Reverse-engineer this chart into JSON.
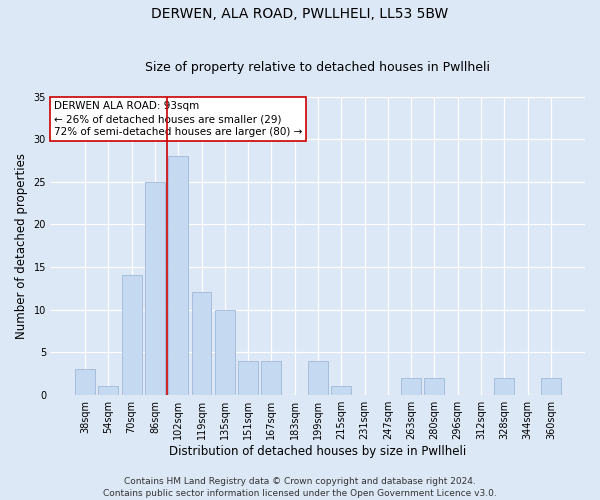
{
  "title": "DERWEN, ALA ROAD, PWLLHELI, LL53 5BW",
  "subtitle": "Size of property relative to detached houses in Pwllheli",
  "xlabel": "Distribution of detached houses by size in Pwllheli",
  "ylabel": "Number of detached properties",
  "categories": [
    "38sqm",
    "54sqm",
    "70sqm",
    "86sqm",
    "102sqm",
    "119sqm",
    "135sqm",
    "151sqm",
    "167sqm",
    "183sqm",
    "199sqm",
    "215sqm",
    "231sqm",
    "247sqm",
    "263sqm",
    "280sqm",
    "296sqm",
    "312sqm",
    "328sqm",
    "344sqm",
    "360sqm"
  ],
  "values": [
    3,
    1,
    14,
    25,
    28,
    12,
    10,
    4,
    4,
    0,
    4,
    1,
    0,
    0,
    2,
    2,
    0,
    0,
    2,
    0,
    2
  ],
  "bar_color": "#c5d9f0",
  "bar_edgecolor": "#a0b8d8",
  "vline_x": 3.5,
  "vline_color": "#cc0000",
  "annotation_title": "DERWEN ALA ROAD: 93sqm",
  "annotation_line1": "← 26% of detached houses are smaller (29)",
  "annotation_line2": "72% of semi-detached houses are larger (80) →",
  "annotation_box_facecolor": "#ffffff",
  "annotation_box_edgecolor": "#cc0000",
  "ylim": [
    0,
    35
  ],
  "yticks": [
    0,
    5,
    10,
    15,
    20,
    25,
    30,
    35
  ],
  "footer1": "Contains HM Land Registry data © Crown copyright and database right 2024.",
  "footer2": "Contains public sector information licensed under the Open Government Licence v3.0.",
  "bg_color": "#dce8f5",
  "plot_bg_color": "#dce8f5",
  "grid_color": "#ffffff",
  "title_fontsize": 10,
  "subtitle_fontsize": 9,
  "axis_label_fontsize": 8.5,
  "tick_fontsize": 7,
  "annotation_fontsize": 7.5,
  "footer_fontsize": 6.5
}
